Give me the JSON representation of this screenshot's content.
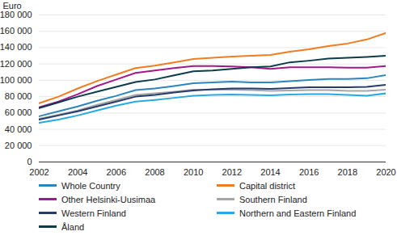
{
  "chart_data": {
    "type": "line",
    "x": [
      2002,
      2003,
      2004,
      2005,
      2006,
      2007,
      2008,
      2009,
      2010,
      2011,
      2012,
      2013,
      2014,
      2015,
      2016,
      2017,
      2018,
      2019,
      2020
    ],
    "xlim": [
      2002,
      2020
    ],
    "xticks": [
      2002,
      2004,
      2006,
      2008,
      2010,
      2012,
      2014,
      2016,
      2018,
      2020
    ],
    "ylabel": "Euro",
    "ylim": [
      0,
      180000
    ],
    "yticks": [
      0,
      {
        "value": 20000,
        "label": "20 000"
      },
      {
        "value": 40000,
        "label": "40 000"
      },
      {
        "value": 60000,
        "label": "60 000"
      },
      {
        "value": 80000,
        "label": "80 000"
      },
      {
        "value": 100000,
        "label": "100 000"
      },
      {
        "value": 120000,
        "label": "120 000"
      },
      {
        "value": 140000,
        "label": "140 000"
      },
      {
        "value": 160000,
        "label": "160 000"
      },
      {
        "value": 180000,
        "label": "180 000"
      }
    ],
    "grid": true,
    "legend": "bottom",
    "series": [
      {
        "name": "Whole Country",
        "color": "#2b86bd",
        "values": [
          56000,
          62000,
          68000,
          75000,
          81000,
          88000,
          90000,
          93000,
          96500,
          97500,
          98500,
          97500,
          97500,
          99000,
          100500,
          101500,
          101500,
          102500,
          106500
        ]
      },
      {
        "name": "Capital district",
        "color": "#f07d22",
        "values": [
          72000,
          80000,
          90000,
          99000,
          107000,
          115000,
          118000,
          122000,
          126000,
          127500,
          129000,
          130000,
          131000,
          135000,
          138000,
          142000,
          145000,
          150000,
          158000
        ]
      },
      {
        "name": "Other Helsinki-Uusimaa",
        "color": "#a3198b",
        "values": [
          67000,
          74000,
          83000,
          93000,
          101000,
          109000,
          112000,
          115000,
          117500,
          117500,
          117000,
          116000,
          114000,
          116000,
          116000,
          116000,
          115500,
          115500,
          117500
        ]
      },
      {
        "name": "Southern Finland",
        "color": "#a6a6a6",
        "values": [
          53000,
          58000,
          63000,
          70000,
          76000,
          82000,
          84000,
          86000,
          88500,
          88500,
          88500,
          88000,
          87000,
          87500,
          88000,
          88000,
          87000,
          87000,
          88500
        ]
      },
      {
        "name": "Western Finland",
        "color": "#253b6e",
        "values": [
          52000,
          57000,
          62000,
          68000,
          74000,
          80000,
          82000,
          85000,
          87500,
          89000,
          90000,
          90000,
          89500,
          90500,
          91500,
          91500,
          91500,
          92000,
          94500
        ]
      },
      {
        "name": "Northern and Eastern Finland",
        "color": "#27a9e1",
        "values": [
          48000,
          52000,
          57000,
          63000,
          69000,
          74000,
          76000,
          78500,
          81000,
          82000,
          82500,
          82000,
          81500,
          82500,
          83000,
          83000,
          82000,
          81000,
          84000
        ]
      },
      {
        "name": "Åland",
        "color": "#0b3c49",
        "values": [
          66000,
          73000,
          80000,
          86000,
          92000,
          98000,
          101000,
          106000,
          111000,
          112000,
          114000,
          116000,
          117000,
          122000,
          124000,
          126500,
          127500,
          128500,
          130000
        ]
      }
    ]
  }
}
